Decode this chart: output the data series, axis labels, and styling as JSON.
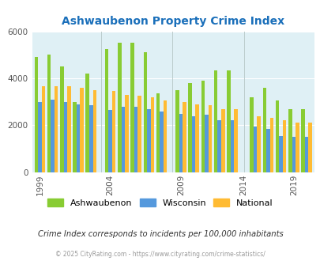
{
  "title": "Ashwaubenon Property Crime Index",
  "title_color": "#1a6fba",
  "subtitle": "Crime Index corresponds to incidents per 100,000 inhabitants",
  "footer": "© 2025 CityRating.com - https://www.cityrating.com/crime-statistics/",
  "years": [
    1999,
    2000,
    2001,
    2002,
    2003,
    2004,
    2005,
    2006,
    2007,
    2008,
    2009,
    2010,
    2011,
    2012,
    2013,
    2016,
    2017,
    2018,
    2019,
    2020
  ],
  "ashwaubenon": [
    4900,
    5000,
    4500,
    3000,
    4200,
    5250,
    5500,
    5500,
    5100,
    3350,
    3500,
    3800,
    3900,
    4350,
    4350,
    3200,
    3600,
    3050,
    2700,
    2700
  ],
  "wisconsin": [
    3000,
    3100,
    3000,
    2900,
    2850,
    2650,
    2800,
    2800,
    2700,
    2600,
    2500,
    2400,
    2450,
    2200,
    2200,
    1950,
    1850,
    1550,
    1500,
    1500
  ],
  "national": [
    3650,
    3650,
    3650,
    3600,
    3500,
    3450,
    3300,
    3250,
    3200,
    3050,
    3000,
    2900,
    2850,
    2700,
    2700,
    2400,
    2300,
    2200,
    2100,
    2100
  ],
  "xtick_years": [
    1999,
    2004,
    2009,
    2014,
    2019
  ],
  "ylim": [
    0,
    6000
  ],
  "yticks": [
    0,
    2000,
    4000,
    6000
  ],
  "bar_width": 0.28,
  "color_ashwaubenon": "#88cc33",
  "color_wisconsin": "#5599dd",
  "color_national": "#ffbb33",
  "bg_color": "#dff0f5",
  "grid_color": "#ffffff",
  "divider_color": "#bbcccc",
  "legend_labels": [
    "Ashwaubenon",
    "Wisconsin",
    "National"
  ],
  "gap_start": 2014,
  "gap_end": 2015
}
